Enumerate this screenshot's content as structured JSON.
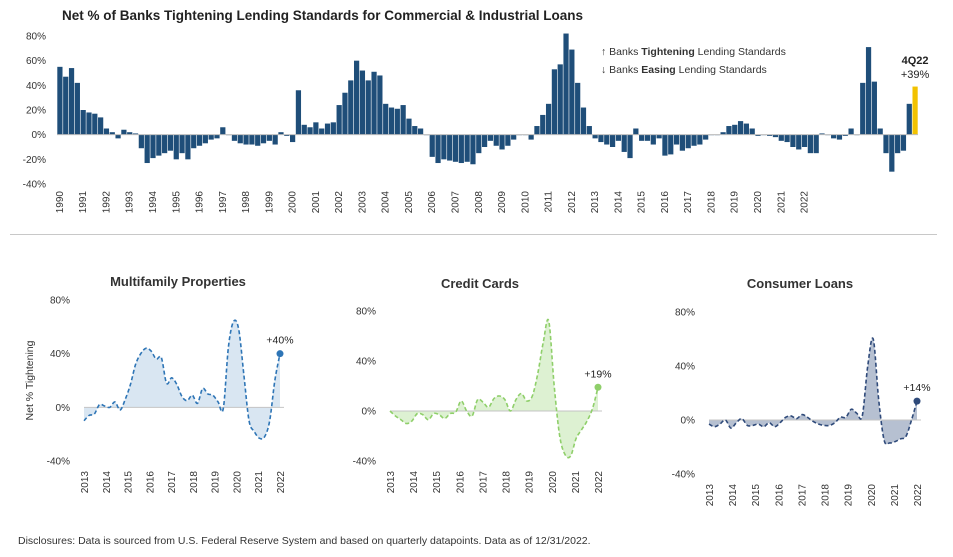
{
  "footer": {
    "disclosure": "Disclosures: Data is sourced from U.S. Federal Reserve System and based on quarterly datapoints. Data as of 12/31/2022."
  },
  "colors": {
    "bar": "#1f4e79",
    "highlight": "#f2c200",
    "multifamily": "#2e75b6",
    "credit": "#8fcf6a",
    "consumer": "#2f4a7a"
  },
  "chart_data": [
    {
      "type": "bar",
      "title": "Net % of Banks Tightening Lending Standards for Commercial & Industrial Loans",
      "ylim": [
        -40,
        80
      ],
      "yticks": [
        "-40%",
        "-20%",
        "0%",
        "20%",
        "40%",
        "60%",
        "80%"
      ],
      "year_labels": [
        "1990",
        "1991",
        "1992",
        "1993",
        "1994",
        "1995",
        "1996",
        "1997",
        "1998",
        "1999",
        "2000",
        "2001",
        "2002",
        "2003",
        "2004",
        "2005",
        "2006",
        "2007",
        "2008",
        "2009",
        "2010",
        "2011",
        "2012",
        "2013",
        "2014",
        "2015",
        "2016",
        "2017",
        "2018",
        "2019",
        "2020",
        "2021",
        "2022"
      ],
      "legend": {
        "up_text_before": "↑ Banks ",
        "up_bold": "Tightening",
        "up_text_after": " Lending Standards",
        "down_text_before": "↓ Banks ",
        "down_bold": "Easing",
        "down_text_after": " Lending Standards"
      },
      "annotation": {
        "label": "4Q22",
        "value_text": "+39%"
      },
      "values": [
        55,
        47,
        54,
        42,
        20,
        18,
        17,
        14,
        5,
        2,
        -3,
        4,
        2,
        1,
        -11,
        -23,
        -19,
        -17,
        -15,
        -13,
        -20,
        -15,
        -20,
        -11,
        -9,
        -7,
        -4,
        -3,
        6,
        0,
        -5,
        -7,
        -8,
        -8,
        -9,
        -7,
        -5,
        -8,
        2,
        -1,
        -6,
        36,
        8,
        6,
        10,
        5,
        9,
        10,
        24,
        34,
        44,
        60,
        52,
        44,
        51,
        48,
        25,
        22,
        21,
        24,
        13,
        7,
        5,
        0,
        -18,
        -23,
        -20,
        -21,
        -22,
        -23,
        -22,
        -24,
        -15,
        -10,
        -5,
        -9,
        -12,
        -9,
        -4,
        0,
        0,
        -4,
        7,
        16,
        25,
        53,
        57,
        82,
        69,
        42,
        22,
        7,
        -3,
        -6,
        -8,
        -10,
        -5,
        -14,
        -19,
        5,
        -5,
        -5,
        -8,
        -3,
        -17,
        -16,
        -8,
        -13,
        -11,
        -9,
        -8,
        -4,
        0,
        0,
        2,
        7,
        8,
        11,
        9,
        5,
        -1,
        0,
        -1,
        -2,
        -5,
        -6,
        -10,
        -12,
        -10,
        -15,
        -15,
        1,
        0,
        -3,
        -4,
        -1,
        5,
        0,
        42,
        71,
        43,
        5,
        -15,
        -30,
        -15,
        -13,
        25,
        39
      ]
    },
    {
      "type": "area",
      "title": "Multifamily Properties",
      "ylabel": "Net % Tightening",
      "ylim": [
        -40,
        80
      ],
      "yticks": [
        "-40%",
        "0%",
        "40%",
        "80%"
      ],
      "x_labels": [
        "2013",
        "2014",
        "2015",
        "2016",
        "2017",
        "2018",
        "2019",
        "2020",
        "2021",
        "2022"
      ],
      "end_label": "+40%",
      "values": [
        -10,
        -6,
        -5,
        2,
        1,
        0,
        4,
        -2,
        6,
        17,
        32,
        40,
        44,
        42,
        36,
        37,
        18,
        22,
        17,
        8,
        5,
        9,
        3,
        14,
        10,
        9,
        4,
        -1,
        45,
        64,
        58,
        24,
        -10,
        -18,
        -23,
        -22,
        -10,
        20,
        40
      ]
    },
    {
      "type": "area",
      "title": "Credit Cards",
      "ylim": [
        -40,
        80
      ],
      "yticks": [
        "-40%",
        "0%",
        "40%",
        "80%"
      ],
      "x_labels": [
        "2013",
        "2014",
        "2015",
        "2016",
        "2017",
        "2018",
        "2019",
        "2020",
        "2021",
        "2022"
      ],
      "end_label": "+19%",
      "values": [
        0,
        -4,
        -7,
        -10,
        -8,
        -2,
        -3,
        -7,
        -2,
        -3,
        -6,
        -2,
        -1,
        8,
        0,
        -4,
        9,
        7,
        3,
        10,
        12,
        9,
        0,
        9,
        14,
        8,
        12,
        30,
        55,
        72,
        20,
        -20,
        -35,
        -36,
        -22,
        -15,
        -8,
        2,
        19
      ]
    },
    {
      "type": "area",
      "title": "Consumer Loans",
      "ylim": [
        -40,
        80
      ],
      "yticks": [
        "-40%",
        "0%",
        "40%",
        "80%"
      ],
      "x_labels": [
        "2013",
        "2014",
        "2015",
        "2016",
        "2017",
        "2018",
        "2019",
        "2020",
        "2021",
        "2022"
      ],
      "end_label": "+14%",
      "values": [
        -3,
        -5,
        -3,
        0,
        -6,
        -2,
        1,
        -4,
        -4,
        -3,
        -5,
        -2,
        -5,
        -2,
        2,
        3,
        1,
        4,
        2,
        -1,
        -3,
        -4,
        -4,
        -2,
        2,
        2,
        8,
        5,
        3,
        40,
        60,
        15,
        -15,
        -17,
        -16,
        -14,
        -12,
        0,
        14
      ]
    }
  ]
}
